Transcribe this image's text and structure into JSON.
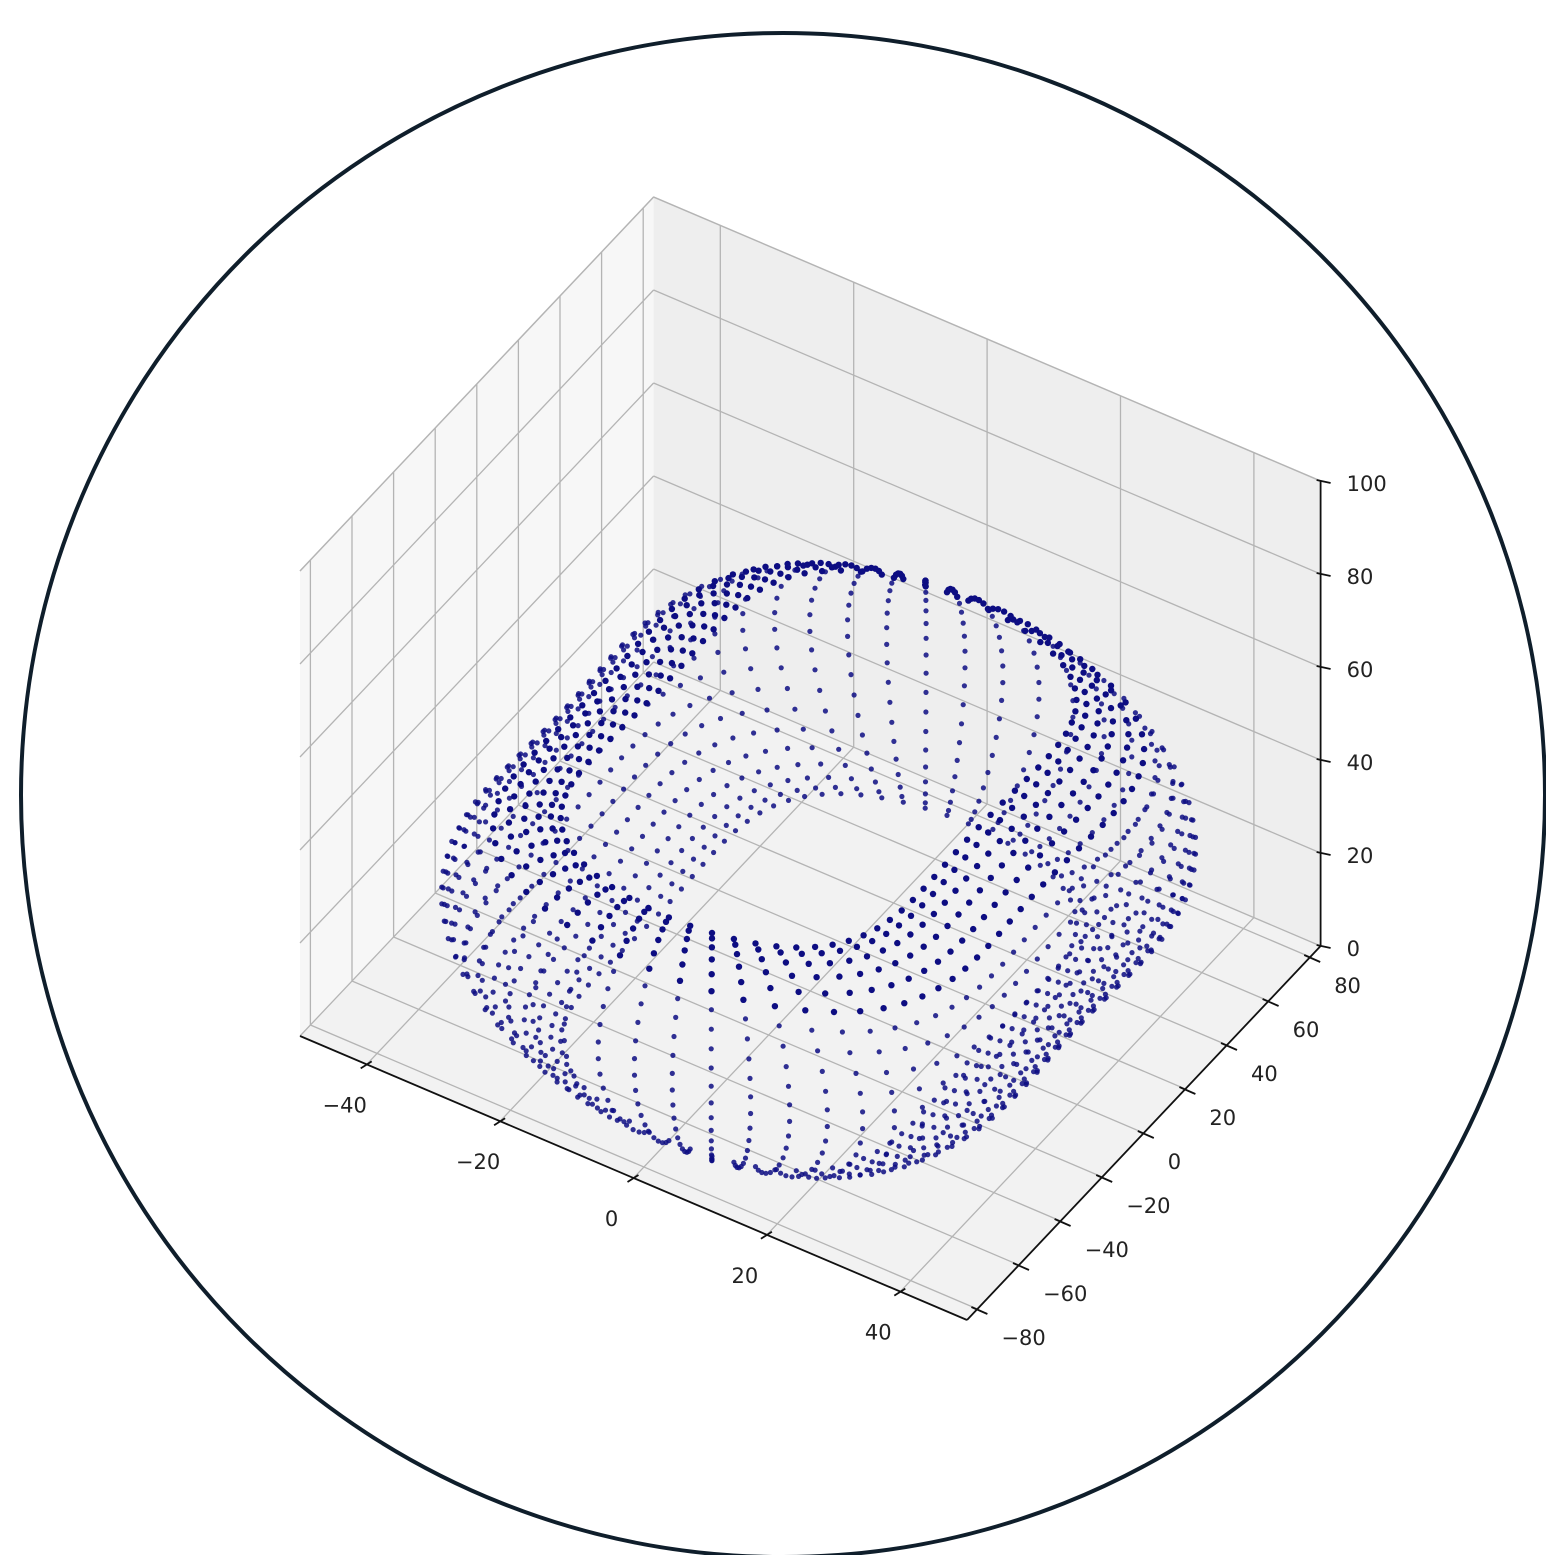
{
  "frame": {
    "border_color": "#0f1e2b"
  },
  "chart_data": {
    "type": "scatter",
    "projection": "3d",
    "title": "",
    "xlabel": "",
    "ylabel": "",
    "zlabel": "",
    "grid": true,
    "marker_color": "#0d0d82",
    "x_range": [
      -50,
      50
    ],
    "y_range": [
      -85,
      85
    ],
    "z_range": [
      0,
      100
    ],
    "x_ticks": [
      -40,
      -20,
      0,
      20,
      40
    ],
    "y_ticks": [
      -80,
      -60,
      -40,
      -20,
      0,
      20,
      40,
      60,
      80
    ],
    "z_ticks": [
      0,
      20,
      40,
      60,
      80,
      100
    ],
    "x_tick_labels": [
      "−40",
      "−20",
      "0",
      "20",
      "40"
    ],
    "y_tick_labels": [
      "−80",
      "−60",
      "−40",
      "−20",
      "0",
      "20",
      "40",
      "60",
      "80"
    ],
    "z_tick_labels": [
      "0",
      "20",
      "40",
      "60",
      "80",
      "100"
    ],
    "surface": {
      "shape": "dumbbell ring (tube around a peanut-shaped curve)",
      "ring_top_z": 48,
      "ring_bottom_z": 0,
      "lobe_x_radius": 40,
      "lobe_y_radius": 38,
      "lobe_y_centers": [
        -30,
        38
      ],
      "neck_x_half_width": 24
    }
  }
}
